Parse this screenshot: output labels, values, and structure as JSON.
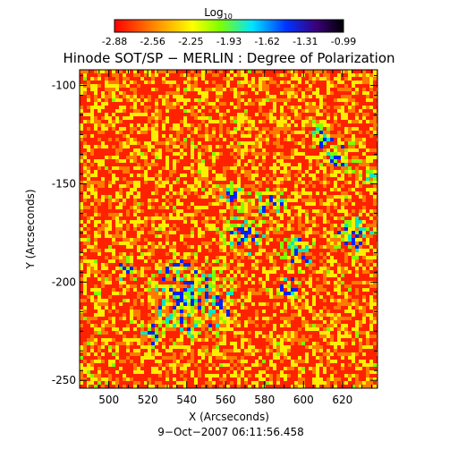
{
  "colorbar": {
    "label_base": "Log",
    "label_sub": "10",
    "ticks": [
      "-2.88",
      "-2.56",
      "-2.25",
      "-1.93",
      "-1.62",
      "-1.31",
      "-0.99"
    ],
    "min": -2.88,
    "max": -0.99,
    "gradient_colors": [
      "#ff0000",
      "#ff8c00",
      "#ffff00",
      "#7fff00",
      "#00e5ff",
      "#0033ff",
      "#3a007a",
      "#000000"
    ]
  },
  "title": "Hinode SOT/SP − MERLIN : Degree of Polarization",
  "xlabel": "X (Arcseconds)",
  "ylabel": "Y (Arcseconds)",
  "x_ticks": [
    500,
    520,
    540,
    560,
    580,
    600,
    620
  ],
  "y_ticks": [
    -100,
    -150,
    -200,
    -250
  ],
  "x_range": [
    485,
    638
  ],
  "y_range": [
    -92,
    -254
  ],
  "timestamp": "9−Oct−2007 06:11:56.458",
  "image_colors": {
    "background": "#ff2200",
    "mid": "#ffff00",
    "high": "#00ff66",
    "strong": "#0022ff"
  }
}
